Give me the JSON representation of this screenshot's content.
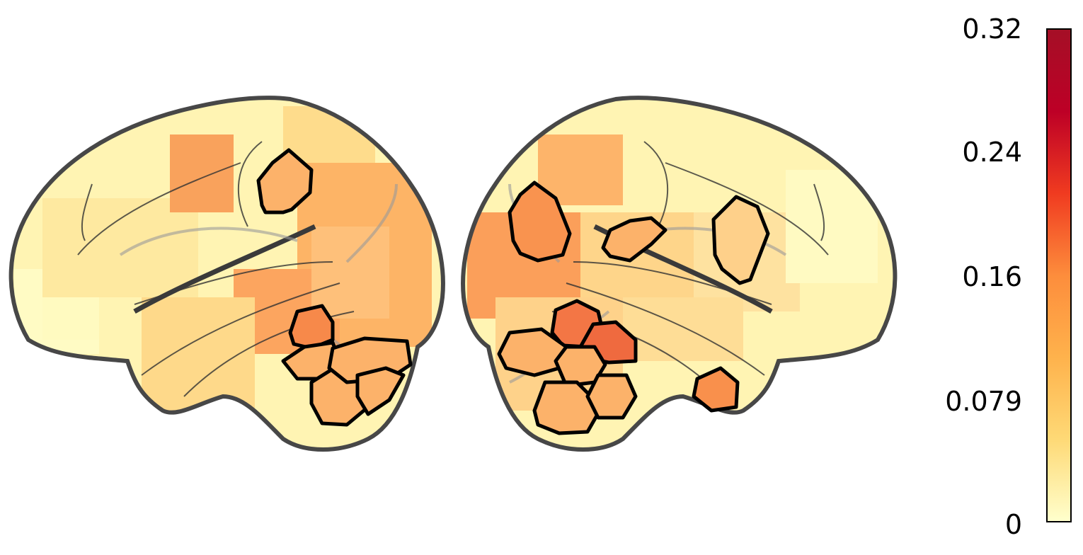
{
  "colorbar": {
    "min": 0,
    "max": 0.32,
    "cmap": [
      "#ffffcc",
      "#fed976",
      "#feb24c",
      "#fd8d3c",
      "#f03b20",
      "#bd0026",
      "#a50f26"
    ],
    "ticks": [
      {
        "label": "0.32",
        "value": 0.32
      },
      {
        "label": "0.24",
        "value": 0.24
      },
      {
        "label": "0.16",
        "value": 0.16
      },
      {
        "label": "0.079",
        "value": 0.079
      },
      {
        "label": "0",
        "value": 0
      }
    ]
  },
  "colors": {
    "brain_outline": "#474747",
    "sulcus": "#333333",
    "roi_outline": "#000000",
    "base_fill": "#fff3b0"
  }
}
